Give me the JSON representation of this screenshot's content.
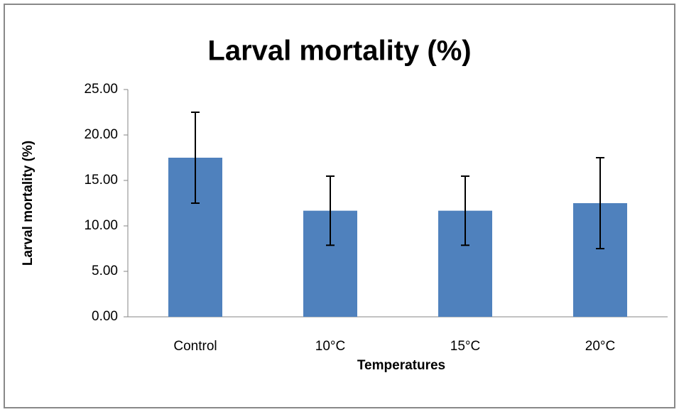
{
  "chart_data": {
    "type": "bar",
    "title": "Larval mortality (%)",
    "x_label": "Temperatures",
    "y_label": "Larval mortality (%)",
    "categories": [
      "Control",
      "10°C",
      "15°C",
      "20°C"
    ],
    "values": [
      17.5,
      11.67,
      11.67,
      12.5
    ],
    "errors": [
      5.0,
      3.8,
      3.8,
      5.0
    ],
    "color": "#4f81bd",
    "ylim": [
      0,
      25
    ],
    "yticks": [
      {
        "value": 0,
        "label": "0.00"
      },
      {
        "value": 5,
        "label": "5.00"
      },
      {
        "value": 10,
        "label": "10.00"
      },
      {
        "value": 15,
        "label": "15.00"
      },
      {
        "value": 20,
        "label": "20.00"
      },
      {
        "value": 25,
        "label": "25.00"
      }
    ],
    "grid": false
  }
}
